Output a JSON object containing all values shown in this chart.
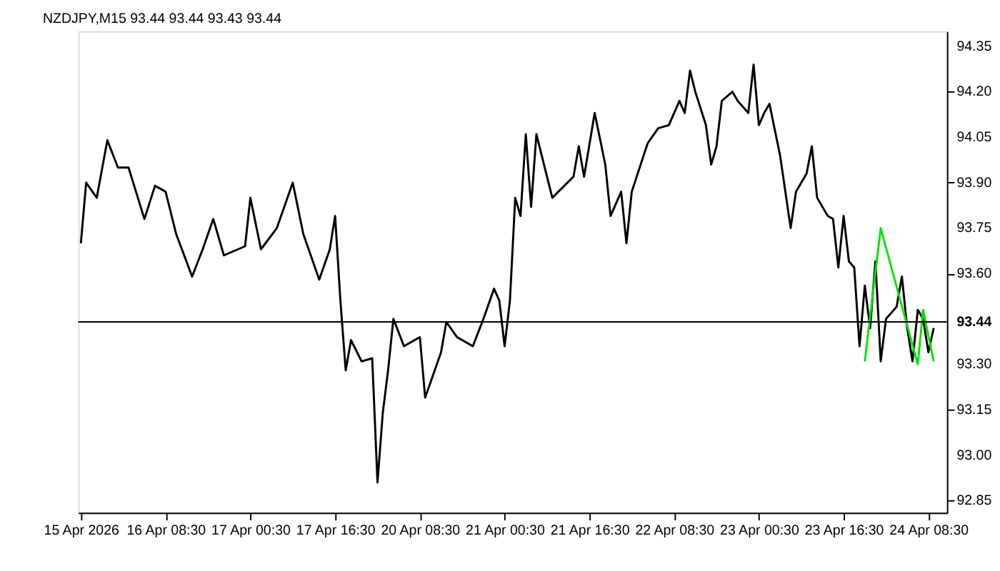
{
  "chart_data": {
    "type": "line",
    "title": "NZDJPY,M15  93.44 93.44 93.43 93.44",
    "categories": [
      "15 Apr 2026",
      null,
      null,
      null,
      null,
      null,
      null,
      null,
      null,
      null,
      null,
      null,
      null,
      null,
      null,
      null,
      "16 Apr 08:30",
      null,
      null,
      null,
      null,
      null,
      null,
      null,
      null,
      null,
      null,
      null,
      null,
      null,
      null,
      null,
      "17 Apr 00:30",
      null,
      null,
      null,
      null,
      null,
      null,
      null,
      null,
      null,
      null,
      null,
      null,
      null,
      null,
      null,
      "17 Apr 16:30",
      null,
      null,
      null,
      null,
      null,
      null,
      null,
      null,
      null,
      null,
      null,
      null,
      null,
      null,
      null,
      "20 Apr 08:30",
      null,
      null,
      null,
      null,
      null,
      null,
      null,
      null,
      null,
      null,
      null,
      null,
      null,
      null,
      null,
      "21 Apr 00:30",
      null,
      null,
      null,
      null,
      null,
      null,
      null,
      null,
      null,
      null,
      null,
      null,
      null,
      null,
      null,
      "21 Apr 16:30",
      null,
      null,
      null,
      null,
      null,
      null,
      null,
      null,
      null,
      null,
      null,
      null,
      null,
      null,
      null,
      "22 Apr 08:30",
      null,
      null,
      null,
      null,
      null,
      null,
      null,
      null,
      null,
      null,
      null,
      null,
      null,
      null,
      null,
      "23 Apr 00:30",
      null,
      null,
      null,
      null,
      null,
      null,
      null,
      null,
      null,
      null,
      null,
      null,
      null,
      null,
      null,
      "23 Apr 16:30",
      null,
      null,
      null,
      null,
      null,
      null,
      null,
      null,
      null,
      null,
      null,
      null,
      null,
      null,
      null,
      "24 Apr 08:30",
      null,
      null,
      null
    ],
    "ylim": [
      92.81,
      94.4
    ],
    "yticks": [
      {
        "value": 92.85,
        "label": "92.85"
      },
      {
        "value": 93.0,
        "label": "93.00"
      },
      {
        "value": 93.15,
        "label": "93.15"
      },
      {
        "value": 93.3,
        "label": "93.30"
      },
      {
        "value": 93.6,
        "label": "93.60"
      },
      {
        "value": 93.75,
        "label": "93.75"
      },
      {
        "value": 93.9,
        "label": "93.90"
      },
      {
        "value": 94.05,
        "label": "94.05"
      },
      {
        "value": 94.2,
        "label": "94.20"
      },
      {
        "value": 94.35,
        "label": "94.35"
      }
    ],
    "grid": false,
    "series": [
      {
        "color": "#000000",
        "values": [
          93.7,
          93.9,
          null,
          93.85,
          null,
          94.04,
          null,
          93.95,
          null,
          93.95,
          null,
          null,
          93.78,
          null,
          93.89,
          null,
          93.87,
          null,
          93.73,
          null,
          null,
          93.59,
          null,
          93.68,
          null,
          93.78,
          null,
          93.66,
          null,
          null,
          null,
          93.69,
          93.85,
          null,
          93.68,
          null,
          null,
          93.75,
          null,
          null,
          93.9,
          null,
          93.73,
          null,
          null,
          93.58,
          null,
          93.68,
          93.79,
          93.51,
          93.28,
          93.38,
          null,
          93.31,
          null,
          93.32,
          92.91,
          93.14,
          93.28,
          93.45,
          null,
          93.36,
          null,
          null,
          93.39,
          93.19,
          null,
          null,
          93.34,
          93.44,
          null,
          93.39,
          null,
          null,
          93.36,
          null,
          93.45,
          null,
          93.55,
          93.51,
          93.36,
          93.51,
          93.85,
          93.79,
          94.06,
          93.82,
          94.06,
          null,
          null,
          93.85,
          null,
          null,
          null,
          93.92,
          94.02,
          93.92,
          null,
          94.13,
          null,
          93.96,
          93.79,
          null,
          93.87,
          93.7,
          93.87,
          null,
          null,
          94.03,
          null,
          94.08,
          null,
          94.09,
          null,
          94.17,
          94.13,
          94.27,
          94.2,
          null,
          94.09,
          93.96,
          94.02,
          94.17,
          null,
          94.2,
          94.17,
          null,
          94.13,
          94.29,
          94.09,
          94.13,
          94.16,
          null,
          93.99,
          93.87,
          93.75,
          93.87,
          null,
          93.93,
          94.02,
          93.85,
          null,
          93.79,
          93.78,
          93.62,
          93.79,
          93.64,
          93.62,
          93.36,
          93.56,
          93.42,
          93.64,
          93.31,
          93.45,
          null,
          93.49,
          93.59,
          93.42,
          93.31,
          93.48,
          93.45,
          93.34,
          93.42,
          null,
          null
        ]
      },
      {
        "color": "#00e600",
        "values": [
          null,
          null,
          null,
          null,
          null,
          null,
          null,
          null,
          null,
          null,
          null,
          null,
          null,
          null,
          null,
          null,
          null,
          null,
          null,
          null,
          null,
          null,
          null,
          null,
          null,
          null,
          null,
          null,
          null,
          null,
          null,
          null,
          null,
          null,
          null,
          null,
          null,
          null,
          null,
          null,
          null,
          null,
          null,
          null,
          null,
          null,
          null,
          null,
          null,
          null,
          null,
          null,
          null,
          null,
          null,
          null,
          null,
          null,
          null,
          null,
          null,
          null,
          null,
          null,
          null,
          null,
          null,
          null,
          null,
          null,
          null,
          null,
          null,
          null,
          null,
          null,
          null,
          null,
          null,
          null,
          null,
          null,
          null,
          null,
          null,
          null,
          null,
          null,
          null,
          null,
          null,
          null,
          null,
          null,
          null,
          null,
          null,
          null,
          null,
          null,
          null,
          null,
          null,
          null,
          null,
          null,
          null,
          null,
          null,
          null,
          null,
          null,
          null,
          null,
          null,
          null,
          null,
          null,
          null,
          null,
          null,
          null,
          null,
          null,
          null,
          null,
          null,
          null,
          null,
          null,
          null,
          null,
          null,
          null,
          null,
          null,
          null,
          null,
          null,
          null,
          null,
          null,
          null,
          null,
          null,
          null,
          null,
          null,
          93.31,
          null,
          null,
          93.75,
          null,
          null,
          null,
          null,
          null,
          null,
          93.3,
          93.48,
          null,
          93.31,
          null,
          null
        ]
      }
    ],
    "ref_lines": [
      {
        "axis": "y",
        "value": 93.44,
        "label": "93.44",
        "color": "#000000"
      }
    ]
  }
}
